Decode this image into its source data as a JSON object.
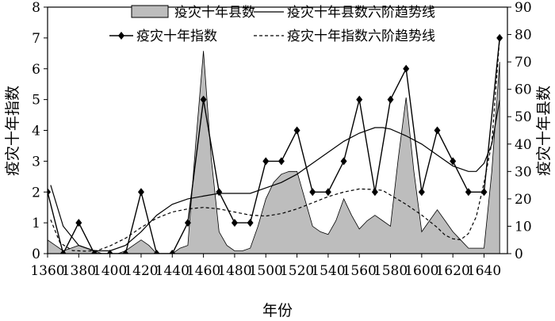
{
  "chart_data": {
    "type": "line",
    "xlabel": "年份",
    "ylabel_left": "疫灾十年指数",
    "ylabel_right": "疫灾十年县数",
    "xlim": [
      1360,
      1655
    ],
    "ylim_left": [
      0,
      8
    ],
    "ylim_right": [
      0,
      90
    ],
    "x_ticks": [
      "1360",
      "1380",
      "1400",
      "1420",
      "1440",
      "1460",
      "1480",
      "1500",
      "1520",
      "1540",
      "1560",
      "1580",
      "1600",
      "1620",
      "1640"
    ],
    "y_left_ticks": [
      "0",
      "1",
      "2",
      "3",
      "4",
      "5",
      "6",
      "7",
      "8"
    ],
    "y_right_ticks": [
      "0",
      "10",
      "20",
      "30",
      "40",
      "50",
      "60",
      "70",
      "80",
      "90"
    ],
    "legend": {
      "area": "疫灾十年县数",
      "solid_trend": "疫灾十年县数六阶趋势线",
      "index_line": "疫灾十年指数",
      "dashed_trend": "疫灾十年指数六阶趋势线"
    },
    "series": [
      {
        "name": "疫灾十年县数",
        "kind": "area",
        "axis": "right",
        "color": "#bdbdbd",
        "x": [
          1360,
          1365,
          1370,
          1375,
          1380,
          1385,
          1390,
          1395,
          1400,
          1405,
          1410,
          1415,
          1420,
          1425,
          1430,
          1435,
          1440,
          1445,
          1450,
          1455,
          1460,
          1465,
          1470,
          1475,
          1480,
          1485,
          1490,
          1495,
          1500,
          1505,
          1510,
          1515,
          1520,
          1525,
          1530,
          1535,
          1540,
          1545,
          1550,
          1555,
          1560,
          1565,
          1570,
          1575,
          1580,
          1585,
          1590,
          1595,
          1600,
          1605,
          1610,
          1615,
          1620,
          1625,
          1630,
          1635,
          1640,
          1645,
          1650
        ],
        "values": [
          5,
          3,
          1,
          2,
          3,
          2,
          1,
          0,
          0,
          0,
          1,
          3,
          5,
          3,
          0,
          0,
          0,
          2,
          3,
          40,
          74,
          35,
          8,
          3,
          1,
          1,
          2,
          10,
          20,
          26,
          29,
          30,
          30,
          20,
          10,
          8,
          7,
          12,
          20,
          14,
          9,
          12,
          14,
          12,
          10,
          35,
          57,
          30,
          8,
          12,
          16,
          12,
          8,
          5,
          2,
          2,
          2,
          30,
          70
        ]
      },
      {
        "name": "疫灾十年县数六阶趋势线",
        "kind": "line",
        "axis": "right",
        "style": "solid",
        "x": [
          1362,
          1370,
          1380,
          1390,
          1400,
          1410,
          1420,
          1430,
          1440,
          1450,
          1460,
          1470,
          1480,
          1490,
          1500,
          1510,
          1520,
          1530,
          1540,
          1550,
          1560,
          1570,
          1575,
          1580,
          1590,
          1600,
          1610,
          1620,
          1630,
          1635,
          1640,
          1645,
          1650
        ],
        "values": [
          25,
          10,
          3,
          1,
          1,
          3,
          8,
          14,
          18,
          20,
          21,
          22,
          22,
          22,
          24,
          26,
          29,
          33,
          37,
          41,
          44,
          46,
          46,
          45.5,
          43,
          40,
          36,
          32,
          30,
          30,
          33,
          40,
          56
        ]
      },
      {
        "name": "疫灾十年指数",
        "kind": "line",
        "axis": "left",
        "style": "solid",
        "marker": "diamond",
        "x": [
          1360,
          1370,
          1380,
          1390,
          1400,
          1410,
          1420,
          1430,
          1440,
          1450,
          1460,
          1470,
          1480,
          1490,
          1500,
          1510,
          1520,
          1530,
          1540,
          1550,
          1560,
          1570,
          1580,
          1590,
          1600,
          1610,
          1620,
          1630,
          1640,
          1650
        ],
        "values": [
          2,
          0,
          1,
          0,
          0,
          0,
          2,
          0,
          0,
          1,
          5,
          2,
          1,
          1,
          3,
          3,
          4,
          2,
          2,
          3,
          5,
          2,
          5,
          6,
          2,
          4,
          3,
          2,
          2,
          7
        ]
      },
      {
        "name": "疫灾十年指数六阶趋势线",
        "kind": "line",
        "axis": "left",
        "style": "dashed",
        "x": [
          1362,
          1368,
          1376,
          1384,
          1392,
          1400,
          1410,
          1420,
          1430,
          1440,
          1450,
          1460,
          1470,
          1480,
          1490,
          1500,
          1510,
          1520,
          1530,
          1540,
          1550,
          1560,
          1570,
          1575,
          1580,
          1590,
          1600,
          1610,
          1615,
          1620,
          1625,
          1630,
          1635,
          1640,
          1645,
          1650
        ],
        "values": [
          1.1,
          0.35,
          0.1,
          0.08,
          0.1,
          0.25,
          0.5,
          0.85,
          1.15,
          1.35,
          1.45,
          1.5,
          1.45,
          1.35,
          1.25,
          1.22,
          1.3,
          1.45,
          1.65,
          1.85,
          2.0,
          2.1,
          2.08,
          2.05,
          1.9,
          1.6,
          1.25,
          0.85,
          0.6,
          0.48,
          0.45,
          0.65,
          1.2,
          2.3,
          3.6,
          7.0
        ]
      }
    ]
  }
}
